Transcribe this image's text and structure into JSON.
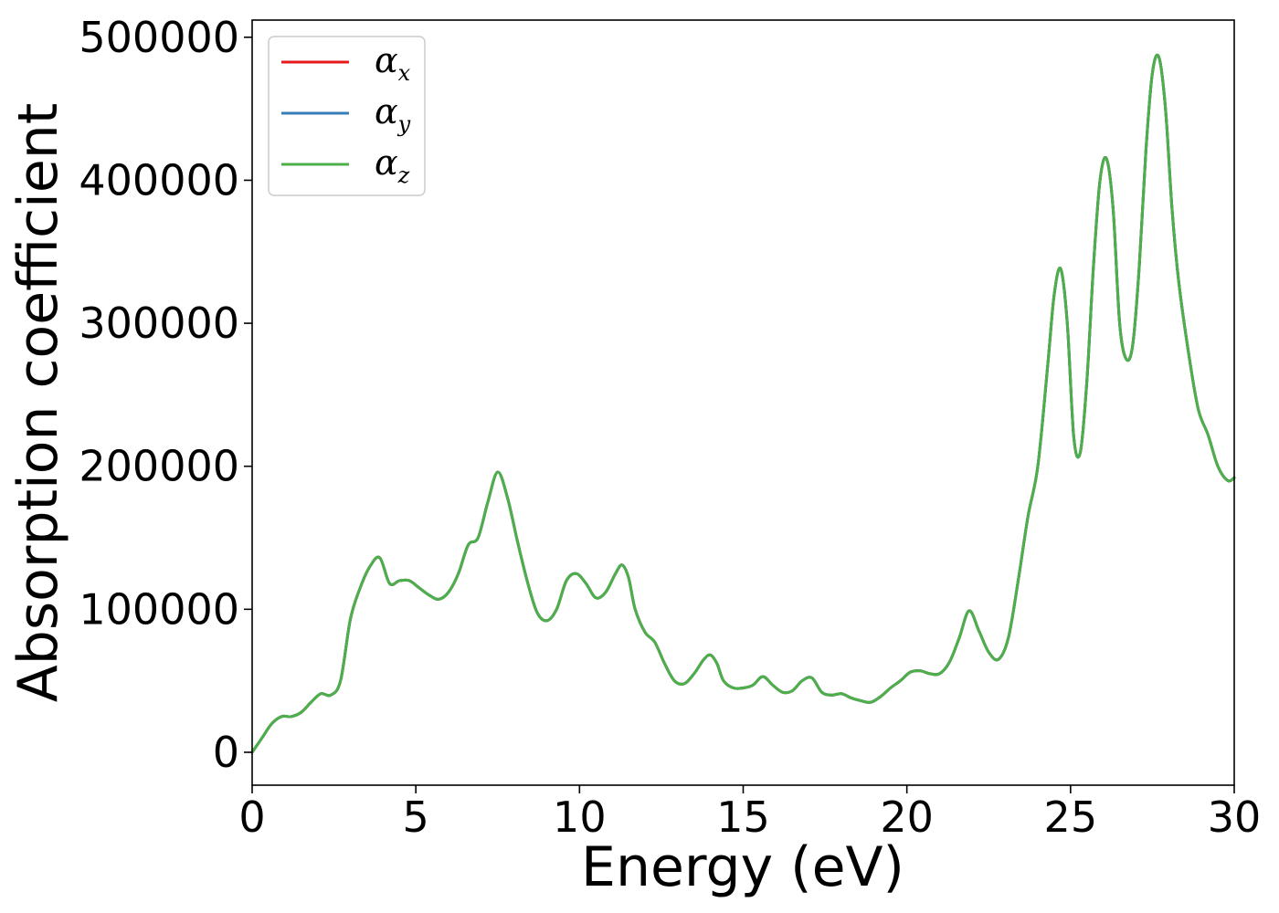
{
  "chart_data": {
    "type": "line",
    "xlabel": "Energy (eV)",
    "ylabel": "Absorption coefficient",
    "xlim": [
      0,
      30
    ],
    "ylim": [
      -23000,
      512000
    ],
    "xticks": [
      0,
      5,
      10,
      15,
      20,
      25,
      30
    ],
    "yticks": [
      0,
      100000,
      200000,
      300000,
      400000,
      500000
    ],
    "grid": false,
    "legend_position": "top-left",
    "x": [
      0,
      0.3,
      0.6,
      0.9,
      1.2,
      1.5,
      1.8,
      2.1,
      2.4,
      2.7,
      3.0,
      3.3,
      3.6,
      3.9,
      4.2,
      4.5,
      4.8,
      5.1,
      5.4,
      5.7,
      6.0,
      6.3,
      6.6,
      6.9,
      7.2,
      7.5,
      7.8,
      8.1,
      8.4,
      8.7,
      9.0,
      9.3,
      9.6,
      9.9,
      10.2,
      10.5,
      10.8,
      11.1,
      11.3,
      11.5,
      11.7,
      12.0,
      12.3,
      12.6,
      12.9,
      13.2,
      13.5,
      13.8,
      14.0,
      14.2,
      14.4,
      14.7,
      15.0,
      15.3,
      15.6,
      15.9,
      16.2,
      16.5,
      16.8,
      17.1,
      17.4,
      17.7,
      18.0,
      18.3,
      18.6,
      18.9,
      19.2,
      19.5,
      19.8,
      20.1,
      20.4,
      20.7,
      21.0,
      21.3,
      21.6,
      21.9,
      22.2,
      22.5,
      22.8,
      23.1,
      23.4,
      23.7,
      24.0,
      24.3,
      24.5,
      24.7,
      24.9,
      25.1,
      25.3,
      25.5,
      25.7,
      25.9,
      26.1,
      26.3,
      26.5,
      26.7,
      26.9,
      27.1,
      27.3,
      27.5,
      27.7,
      27.9,
      28.1,
      28.3,
      28.6,
      28.9,
      29.2,
      29.5,
      29.8,
      30.0
    ],
    "series": [
      {
        "name": "x",
        "color": "#e41a1c",
        "values": [
          0,
          10000,
          20000,
          25000,
          25000,
          28000,
          35000,
          41000,
          40000,
          50000,
          93000,
          115000,
          130000,
          136000,
          118000,
          120000,
          120000,
          115000,
          110000,
          107000,
          112000,
          125000,
          145000,
          150000,
          175000,
          196000,
          178000,
          148000,
          120000,
          98000,
          92000,
          100000,
          120000,
          125000,
          118000,
          108000,
          112000,
          125000,
          131000,
          122000,
          100000,
          84000,
          77000,
          62000,
          50000,
          48000,
          55000,
          65000,
          68000,
          62000,
          50000,
          45000,
          45000,
          47000,
          53000,
          47000,
          42000,
          43000,
          50000,
          52000,
          42000,
          40000,
          41000,
          38000,
          36000,
          35000,
          39000,
          45000,
          50000,
          56000,
          57000,
          55000,
          55000,
          63000,
          80000,
          99000,
          85000,
          70000,
          65000,
          80000,
          120000,
          165000,
          200000,
          270000,
          320000,
          338000,
          300000,
          220000,
          210000,
          260000,
          340000,
          400000,
          415000,
          380000,
          300000,
          275000,
          285000,
          340000,
          420000,
          475000,
          486000,
          450000,
          380000,
          330000,
          280000,
          240000,
          222000,
          200000,
          190000,
          192000
        ]
      },
      {
        "name": "y",
        "color": "#377eb8",
        "values": [
          0,
          10000,
          20000,
          25000,
          25000,
          28000,
          35000,
          41000,
          40000,
          50000,
          93000,
          115000,
          130000,
          136000,
          118000,
          120000,
          120000,
          115000,
          110000,
          107000,
          112000,
          125000,
          145000,
          150000,
          175000,
          196000,
          178000,
          148000,
          120000,
          98000,
          92000,
          100000,
          120000,
          125000,
          118000,
          108000,
          112000,
          125000,
          131000,
          122000,
          100000,
          84000,
          77000,
          62000,
          50000,
          48000,
          55000,
          65000,
          68000,
          62000,
          50000,
          45000,
          45000,
          47000,
          53000,
          47000,
          42000,
          43000,
          50000,
          52000,
          42000,
          40000,
          41000,
          38000,
          36000,
          35000,
          39000,
          45000,
          50000,
          56000,
          57000,
          55000,
          55000,
          63000,
          80000,
          99000,
          85000,
          70000,
          65000,
          80000,
          120000,
          165000,
          200000,
          270000,
          320000,
          338000,
          300000,
          220000,
          210000,
          260000,
          340000,
          400000,
          415000,
          380000,
          300000,
          275000,
          285000,
          340000,
          420000,
          475000,
          486000,
          450000,
          380000,
          330000,
          280000,
          240000,
          222000,
          200000,
          190000,
          192000
        ]
      },
      {
        "name": "z",
        "color": "#4daf4a",
        "values": [
          0,
          10000,
          20000,
          25000,
          25000,
          28000,
          35000,
          41000,
          40000,
          50000,
          93000,
          115000,
          130000,
          136000,
          118000,
          120000,
          120000,
          115000,
          110000,
          107000,
          112000,
          125000,
          145000,
          150000,
          175000,
          196000,
          178000,
          148000,
          120000,
          98000,
          92000,
          100000,
          120000,
          125000,
          118000,
          108000,
          112000,
          125000,
          131000,
          122000,
          100000,
          84000,
          77000,
          62000,
          50000,
          48000,
          55000,
          65000,
          68000,
          62000,
          50000,
          45000,
          45000,
          47000,
          53000,
          47000,
          42000,
          43000,
          50000,
          52000,
          42000,
          40000,
          41000,
          38000,
          36000,
          35000,
          39000,
          45000,
          50000,
          56000,
          57000,
          55000,
          55000,
          63000,
          80000,
          99000,
          85000,
          70000,
          65000,
          80000,
          120000,
          165000,
          200000,
          270000,
          320000,
          338000,
          300000,
          220000,
          210000,
          260000,
          340000,
          400000,
          415000,
          380000,
          300000,
          275000,
          285000,
          340000,
          420000,
          475000,
          486000,
          450000,
          380000,
          330000,
          280000,
          240000,
          222000,
          200000,
          190000,
          192000
        ]
      }
    ]
  }
}
